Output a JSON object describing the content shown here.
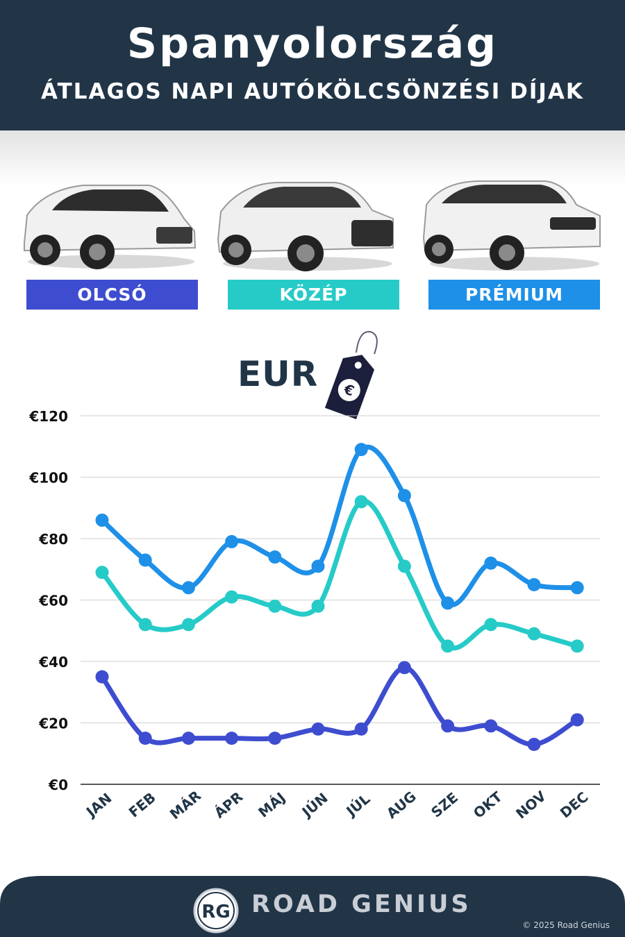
{
  "header": {
    "title": "Spanyolország",
    "subtitle": "ÁTLAGOS NAPI AUTÓKÖLCSÖNZÉSI DÍJAK"
  },
  "categories": [
    {
      "label": "OLCSÓ",
      "color": "#3e4dcf"
    },
    {
      "label": "KÖZÉP",
      "color": "#26cbc8"
    },
    {
      "label": "PRÉMIUM",
      "color": "#1e90e8"
    }
  ],
  "currency_label": "EUR",
  "currency_symbol": "€",
  "chart_data": {
    "type": "line",
    "x": [
      "JAN",
      "FEB",
      "MÁR",
      "ÁPR",
      "MÁJ",
      "JÚN",
      "JÚL",
      "AUG",
      "SZE",
      "OKT",
      "NOV",
      "DEC"
    ],
    "series": [
      {
        "name": "PRÉMIUM",
        "color": "#1e90e8",
        "values": [
          86,
          73,
          64,
          79,
          74,
          71,
          109,
          94,
          59,
          72,
          65,
          64
        ]
      },
      {
        "name": "KÖZÉP",
        "color": "#26cbc8",
        "values": [
          69,
          52,
          52,
          61,
          58,
          58,
          92,
          71,
          45,
          52,
          49,
          45
        ]
      },
      {
        "name": "OLCSÓ",
        "color": "#3e4dcf",
        "values": [
          35,
          15,
          15,
          15,
          15,
          18,
          18,
          38,
          19,
          19,
          13,
          21
        ]
      }
    ],
    "yticks": [
      "€0",
      "€20",
      "€40",
      "€60",
      "€80",
      "€100",
      "€120"
    ],
    "ylim": [
      0,
      120
    ],
    "grid": true
  },
  "footer": {
    "brand": "ROAD GENIUS",
    "logo_text": "RG",
    "copyright": "© 2025 Road Genius"
  }
}
